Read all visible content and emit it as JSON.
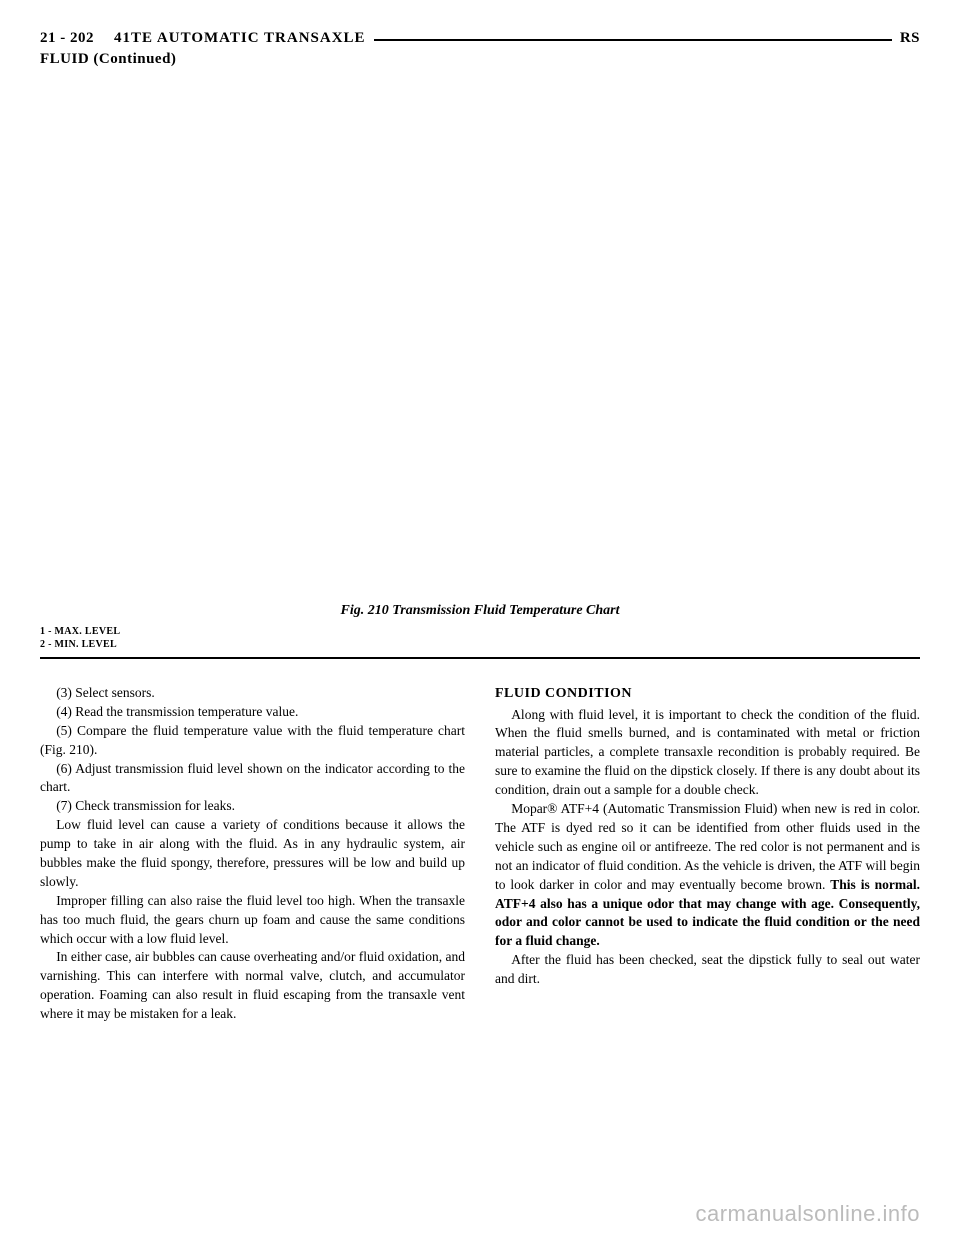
{
  "header": {
    "pageNum": "21 - 202",
    "title": "41TE AUTOMATIC TRANSAXLE",
    "right": "RS"
  },
  "subheader": "FLUID (Continued)",
  "figure": {
    "caption": "Fig. 210 Transmission Fluid Temperature Chart",
    "legend1": "1 - MAX. LEVEL",
    "legend2": "2 - MIN. LEVEL"
  },
  "leftCol": {
    "p1": "(3) Select sensors.",
    "p2": "(4) Read the transmission temperature value.",
    "p3": "(5) Compare the fluid temperature value with the fluid temperature chart (Fig. 210).",
    "p4": "(6) Adjust transmission fluid level shown on the indicator according to the chart.",
    "p5": "(7) Check transmission for leaks.",
    "p6": "Low fluid level can cause a variety of conditions because it allows the pump to take in air along with the fluid. As in any hydraulic system, air bubbles make the fluid spongy, therefore, pressures will be low and build up slowly.",
    "p7": "Improper filling can also raise the fluid level too high. When the transaxle has too much fluid, the gears churn up foam and cause the same conditions which occur with a low fluid level.",
    "p8": "In either case, air bubbles can cause overheating and/or fluid oxidation, and varnishing. This can interfere with normal valve, clutch, and accumulator operation. Foaming can also result in fluid escaping from the transaxle vent where it may be mistaken for a leak."
  },
  "rightCol": {
    "heading": "FLUID CONDITION",
    "p1": "Along with fluid level, it is important to check the condition of the fluid. When the fluid smells burned, and is contaminated with metal or friction material particles, a complete transaxle recondition is probably required. Be sure to examine the fluid on the dipstick closely. If there is any doubt about its condition, drain out a sample for a double check.",
    "p2a": "Mopar® ATF+4 (Automatic Transmission Fluid) when new is red in color. The ATF is dyed red so it can be identified from other fluids used in the vehicle such as engine oil or antifreeze. The red color is not permanent and is not an indicator of fluid condition. As the vehicle is driven, the ATF will begin to look darker in color and may eventually become brown. ",
    "p2b": "This is normal. ATF+4 also has a unique odor that may change with age. Consequently, odor and color cannot be used to indicate the fluid condition or the need for a fluid change.",
    "p3": "After the fluid has been checked, seat the dipstick fully to seal out water and dirt."
  },
  "watermark": "carmanualsonline.info"
}
